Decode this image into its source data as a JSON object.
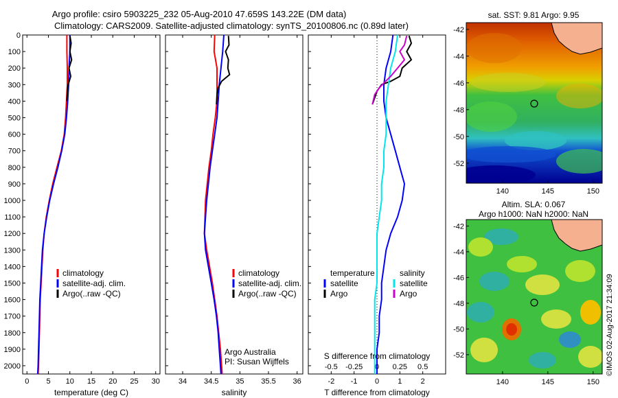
{
  "title_line1": "Argo profile: csiro 5903225_232 05-Aug-2010 47.659S 143.22E (DM data)",
  "title_line2": "Climatology: CARS2009. Satellite-adjusted climatology: synTS_20100806.nc (0.89d later)",
  "credit": "Argo Australia",
  "pi": "PI: Susan Wijffels",
  "stamp": "©IMOS 02-Aug-2017 21:34:09",
  "colors": {
    "climatology": "#ff0000",
    "satellite": "#0000ff",
    "argo": "#000000",
    "sal_satellite": "#00e5ee",
    "sal_argo": "#cc00cc"
  },
  "chart_data": [
    {
      "type": "line",
      "name": "temperature-profile",
      "xlabel": "temperature (deg C)",
      "ylabel": "",
      "xlim": [
        -1,
        31
      ],
      "ylim": [
        2050,
        0
      ],
      "xticks": [
        0,
        5,
        10,
        15,
        20,
        25,
        30
      ],
      "yticks": [
        0,
        100,
        200,
        300,
        400,
        500,
        600,
        700,
        800,
        900,
        1000,
        1100,
        1200,
        1300,
        1400,
        1500,
        1600,
        1700,
        1800,
        1900,
        2000
      ],
      "legend": [
        "climatology",
        "satellite-adj. clim.",
        "Argo(..raw -QC)"
      ],
      "series": [
        {
          "name": "climatology",
          "color": "#ff0000",
          "points": [
            [
              9.3,
              0
            ],
            [
              9.3,
              100
            ],
            [
              9.4,
              200
            ],
            [
              9.4,
              300
            ],
            [
              9.2,
              400
            ],
            [
              9.0,
              500
            ],
            [
              8.7,
              600
            ],
            [
              8.0,
              700
            ],
            [
              7.0,
              800
            ],
            [
              6.0,
              900
            ],
            [
              5.2,
              1000
            ],
            [
              4.5,
              1100
            ],
            [
              4.0,
              1200
            ],
            [
              3.7,
              1300
            ],
            [
              3.5,
              1400
            ],
            [
              3.3,
              1500
            ],
            [
              3.1,
              1600
            ],
            [
              3.0,
              1700
            ],
            [
              2.9,
              1800
            ],
            [
              2.8,
              1900
            ],
            [
              2.7,
              2000
            ],
            [
              2.6,
              2050
            ]
          ]
        },
        {
          "name": "satellite-adj. clim.",
          "color": "#0000ff",
          "points": [
            [
              10.0,
              0
            ],
            [
              10.0,
              100
            ],
            [
              9.8,
              200
            ],
            [
              9.7,
              300
            ],
            [
              9.5,
              400
            ],
            [
              9.2,
              500
            ],
            [
              8.8,
              600
            ],
            [
              8.1,
              700
            ],
            [
              7.2,
              800
            ],
            [
              6.2,
              900
            ],
            [
              5.3,
              1000
            ],
            [
              4.6,
              1100
            ],
            [
              4.0,
              1200
            ],
            [
              3.6,
              1300
            ],
            [
              3.4,
              1400
            ],
            [
              3.2,
              1500
            ],
            [
              3.0,
              1600
            ],
            [
              2.9,
              1700
            ],
            [
              2.8,
              1800
            ],
            [
              2.7,
              1900
            ],
            [
              2.6,
              2000
            ],
            [
              2.5,
              2050
            ]
          ]
        },
        {
          "name": "Argo(..raw -QC)",
          "color": "#000000",
          "points": [
            [
              10.0,
              5
            ],
            [
              10.3,
              50
            ],
            [
              10.0,
              100
            ],
            [
              10.4,
              150
            ],
            [
              9.8,
              200
            ],
            [
              10.2,
              250
            ],
            [
              9.6,
              300
            ],
            [
              9.4,
              350
            ],
            [
              9.3,
              400
            ]
          ]
        }
      ]
    },
    {
      "type": "line",
      "name": "salinity-profile",
      "xlabel": "salinity",
      "ylabel": "",
      "xlim": [
        33.7,
        36.1
      ],
      "ylim": [
        2050,
        0
      ],
      "xticks": [
        34,
        34.5,
        35,
        35.5,
        36
      ],
      "legend": [
        "climatology",
        "satellite-adj. clim.",
        "Argo(..raw -QC)"
      ],
      "series": [
        {
          "name": "climatology",
          "color": "#ff0000",
          "points": [
            [
              34.56,
              0
            ],
            [
              34.55,
              100
            ],
            [
              34.6,
              200
            ],
            [
              34.6,
              300
            ],
            [
              34.6,
              400
            ],
            [
              34.57,
              500
            ],
            [
              34.53,
              600
            ],
            [
              34.5,
              700
            ],
            [
              34.46,
              800
            ],
            [
              34.43,
              900
            ],
            [
              34.4,
              1000
            ],
            [
              34.39,
              1100
            ],
            [
              34.38,
              1200
            ],
            [
              34.42,
              1300
            ],
            [
              34.47,
              1400
            ],
            [
              34.52,
              1500
            ],
            [
              34.56,
              1600
            ],
            [
              34.6,
              1700
            ],
            [
              34.63,
              1800
            ],
            [
              34.66,
              1900
            ],
            [
              34.68,
              2000
            ],
            [
              34.69,
              2050
            ]
          ]
        },
        {
          "name": "satellite-adj. clim.",
          "color": "#0000ff",
          "points": [
            [
              34.72,
              0
            ],
            [
              34.7,
              100
            ],
            [
              34.67,
              200
            ],
            [
              34.64,
              300
            ],
            [
              34.62,
              400
            ],
            [
              34.6,
              500
            ],
            [
              34.56,
              600
            ],
            [
              34.52,
              700
            ],
            [
              34.48,
              800
            ],
            [
              34.45,
              900
            ],
            [
              34.42,
              1000
            ],
            [
              34.4,
              1100
            ],
            [
              34.38,
              1200
            ],
            [
              34.4,
              1300
            ],
            [
              34.45,
              1400
            ],
            [
              34.5,
              1500
            ],
            [
              34.55,
              1600
            ],
            [
              34.59,
              1700
            ],
            [
              34.62,
              1800
            ],
            [
              34.64,
              1900
            ],
            [
              34.66,
              2000
            ],
            [
              34.67,
              2050
            ]
          ]
        },
        {
          "name": "Argo(..raw -QC)",
          "color": "#000000",
          "points": [
            [
              34.8,
              5
            ],
            [
              34.81,
              60
            ],
            [
              34.75,
              100
            ],
            [
              34.8,
              150
            ],
            [
              34.79,
              200
            ],
            [
              34.82,
              240
            ],
            [
              34.68,
              280
            ],
            [
              34.62,
              320
            ],
            [
              34.6,
              360
            ],
            [
              34.59,
              420
            ]
          ]
        }
      ]
    },
    {
      "type": "line",
      "name": "difference-profile",
      "xlabel": "T difference from climatology",
      "ylabel": "",
      "xlabel_top": "S difference from climatology",
      "xlim": [
        -3,
        3
      ],
      "ylim": [
        2050,
        0
      ],
      "xticks": [
        -2,
        -1,
        0,
        1,
        2
      ],
      "xticks_top": [
        -0.5,
        -0.25,
        0,
        0.25,
        0.5
      ],
      "legend": {
        "temperature_header": "temperature",
        "salinity_header": "salinity",
        "satellite": "satellite",
        "argo": "Argo"
      },
      "series": [
        {
          "name": "temperature satellite",
          "color": "#0000ff",
          "points": [
            [
              0.7,
              0
            ],
            [
              0.6,
              100
            ],
            [
              0.4,
              200
            ],
            [
              0.3,
              300
            ],
            [
              0.3,
              400
            ],
            [
              0.4,
              500
            ],
            [
              0.6,
              600
            ],
            [
              0.8,
              700
            ],
            [
              1.0,
              800
            ],
            [
              1.2,
              900
            ],
            [
              1.1,
              1000
            ],
            [
              0.9,
              1100
            ],
            [
              0.6,
              1200
            ],
            [
              0.4,
              1300
            ],
            [
              0.3,
              1400
            ],
            [
              0.2,
              1500
            ],
            [
              0.2,
              1600
            ],
            [
              0.1,
              1700
            ],
            [
              0.1,
              1800
            ],
            [
              0.0,
              1900
            ],
            [
              0.0,
              2000
            ],
            [
              0.0,
              2050
            ]
          ]
        },
        {
          "name": "temperature Argo",
          "color": "#000000",
          "points": [
            [
              1.4,
              5
            ],
            [
              1.5,
              50
            ],
            [
              1.3,
              100
            ],
            [
              1.5,
              150
            ],
            [
              1.1,
              200
            ],
            [
              1.0,
              250
            ],
            [
              0.6,
              280
            ],
            [
              0.2,
              300
            ],
            [
              0.0,
              340
            ],
            [
              -0.1,
              380
            ],
            [
              -0.2,
              420
            ]
          ]
        },
        {
          "name": "salinity satellite",
          "color": "#00e5ee",
          "points": [
            [
              0.9,
              0
            ],
            [
              0.8,
              100
            ],
            [
              0.6,
              200
            ],
            [
              0.5,
              300
            ],
            [
              0.4,
              400
            ],
            [
              0.4,
              500
            ],
            [
              0.4,
              600
            ],
            [
              0.3,
              700
            ],
            [
              0.3,
              800
            ],
            [
              0.2,
              900
            ],
            [
              0.2,
              1000
            ],
            [
              0.1,
              1100
            ],
            [
              0.0,
              1200
            ],
            [
              0.0,
              1300
            ],
            [
              0.0,
              1400
            ],
            [
              0.0,
              1500
            ],
            [
              -0.1,
              1600
            ],
            [
              -0.1,
              1700
            ],
            [
              -0.1,
              1800
            ],
            [
              -0.1,
              1900
            ],
            [
              -0.1,
              2000
            ],
            [
              -0.1,
              2050
            ]
          ]
        },
        {
          "name": "salinity Argo",
          "color": "#cc00cc",
          "points": [
            [
              1.3,
              5
            ],
            [
              1.2,
              60
            ],
            [
              1.0,
              100
            ],
            [
              1.2,
              150
            ],
            [
              0.9,
              200
            ],
            [
              0.6,
              250
            ],
            [
              0.3,
              290
            ],
            [
              0.1,
              320
            ],
            [
              -0.1,
              360
            ],
            [
              -0.2,
              420
            ]
          ]
        }
      ]
    },
    {
      "type": "heatmap",
      "name": "sst-map",
      "title": "sat. SST: 9.81 Argo: 9.95",
      "xlim": [
        136,
        151
      ],
      "ylim": [
        -53.5,
        -41.5
      ],
      "xticks": [
        140,
        145,
        150
      ],
      "yticks": [
        -42,
        -44,
        -46,
        -48,
        -50,
        -52
      ],
      "marker": {
        "lon": 143.22,
        "lat": -47.66
      }
    },
    {
      "type": "heatmap",
      "name": "sla-map",
      "title": "Altim. SLA: 0.067",
      "subtitle": "Argo h1000: NaN h2000: NaN",
      "xlim": [
        136,
        151
      ],
      "ylim": [
        -53.5,
        -41.5
      ],
      "xticks": [
        140,
        145,
        150
      ],
      "yticks": [
        -42,
        -44,
        -46,
        -48,
        -50,
        -52
      ],
      "marker": {
        "lon": 143.22,
        "lat": -47.66
      }
    }
  ]
}
